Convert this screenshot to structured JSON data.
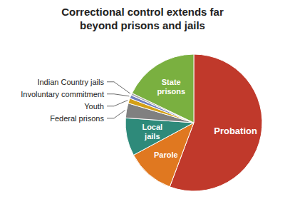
{
  "chart_data": {
    "type": "pie",
    "title": "Correctional control extends far\nbeyond prisons and jails",
    "categories": [
      "Probation",
      "Parole",
      "Local\njails",
      "Federal prisons",
      "Youth",
      "Involuntary commitment",
      "Indian Country jails",
      "State\nprisons"
    ],
    "values": [
      56.0,
      11.5,
      9.0,
      3.5,
      1.2,
      0.8,
      0.5,
      18.0
    ],
    "colors": [
      "#c0392b",
      "#e07820",
      "#2e8a7a",
      "#808080",
      "#d4a017",
      "#7080c0",
      "#aaaaaa",
      "#7ab040"
    ]
  }
}
